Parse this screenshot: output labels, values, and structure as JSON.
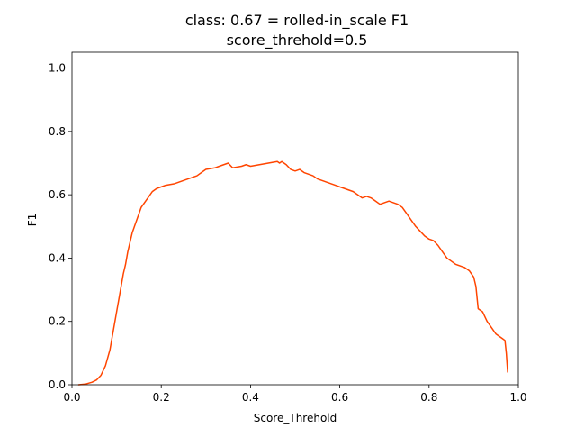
{
  "chart_data": {
    "type": "line",
    "title": "class: 0.67 = rolled-in_scale F1",
    "subtitle": "score_threhold=0.5",
    "xlabel": "Score_Threhold",
    "ylabel": "F1",
    "xlim": [
      0.0,
      1.0
    ],
    "ylim": [
      0.0,
      1.05
    ],
    "xticks": [
      0.0,
      0.2,
      0.4,
      0.6,
      0.8,
      1.0
    ],
    "xtick_labels": [
      "0.0",
      "0.2",
      "0.4",
      "0.6",
      "0.8",
      "1.0"
    ],
    "yticks": [
      0.0,
      0.2,
      0.4,
      0.6,
      0.8,
      1.0
    ],
    "ytick_labels": [
      "0.0",
      "0.2",
      "0.4",
      "0.6",
      "0.8",
      "1.0"
    ],
    "grid": false,
    "line_color": "#ff4500",
    "series": [
      {
        "x": [
          0.015,
          0.03,
          0.045,
          0.055,
          0.065,
          0.075,
          0.085,
          0.09,
          0.095,
          0.1,
          0.105,
          0.11,
          0.115,
          0.12,
          0.125,
          0.13,
          0.135,
          0.14,
          0.145,
          0.15,
          0.155,
          0.16,
          0.17,
          0.18,
          0.19,
          0.2,
          0.21,
          0.23,
          0.25,
          0.27,
          0.28,
          0.29,
          0.295,
          0.3,
          0.32,
          0.33,
          0.34,
          0.35,
          0.36,
          0.38,
          0.39,
          0.4,
          0.42,
          0.44,
          0.46,
          0.465,
          0.47,
          0.48,
          0.49,
          0.5,
          0.51,
          0.52,
          0.53,
          0.54,
          0.55,
          0.56,
          0.57,
          0.58,
          0.59,
          0.6,
          0.61,
          0.62,
          0.63,
          0.64,
          0.65,
          0.66,
          0.67,
          0.68,
          0.69,
          0.7,
          0.71,
          0.72,
          0.73,
          0.74,
          0.75,
          0.76,
          0.77,
          0.78,
          0.79,
          0.8,
          0.81,
          0.82,
          0.83,
          0.84,
          0.85,
          0.86,
          0.87,
          0.88,
          0.89,
          0.9,
          0.905,
          0.91,
          0.92,
          0.93,
          0.94,
          0.95,
          0.96,
          0.965,
          0.97,
          0.973,
          0.976
        ],
        "values": [
          0.0,
          0.002,
          0.008,
          0.015,
          0.03,
          0.06,
          0.11,
          0.15,
          0.19,
          0.23,
          0.27,
          0.31,
          0.35,
          0.38,
          0.42,
          0.45,
          0.48,
          0.5,
          0.52,
          0.54,
          0.56,
          0.57,
          0.59,
          0.61,
          0.62,
          0.625,
          0.63,
          0.635,
          0.645,
          0.655,
          0.66,
          0.67,
          0.675,
          0.68,
          0.685,
          0.69,
          0.695,
          0.7,
          0.685,
          0.69,
          0.695,
          0.69,
          0.695,
          0.7,
          0.705,
          0.7,
          0.705,
          0.695,
          0.68,
          0.675,
          0.68,
          0.67,
          0.665,
          0.66,
          0.65,
          0.645,
          0.64,
          0.635,
          0.63,
          0.625,
          0.62,
          0.615,
          0.61,
          0.6,
          0.59,
          0.595,
          0.59,
          0.58,
          0.57,
          0.575,
          0.58,
          0.575,
          0.57,
          0.56,
          0.54,
          0.52,
          0.5,
          0.485,
          0.47,
          0.46,
          0.455,
          0.44,
          0.42,
          0.4,
          0.39,
          0.38,
          0.375,
          0.37,
          0.36,
          0.34,
          0.31,
          0.24,
          0.23,
          0.2,
          0.18,
          0.16,
          0.15,
          0.145,
          0.14,
          0.1,
          0.04
        ]
      }
    ]
  }
}
